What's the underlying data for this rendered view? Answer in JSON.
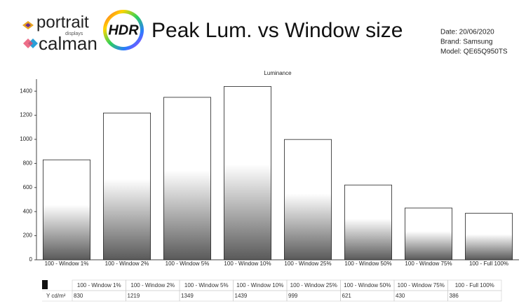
{
  "header": {
    "logo_top": "portrait",
    "logo_top_sub": "displays",
    "logo_bottom": "calman",
    "badge": "HDR",
    "title": "Peak Lum. vs Window size",
    "date": "Date: 20/06/2020",
    "brand": "Brand: Samsung",
    "model": "Model: QE65Q950TS"
  },
  "chart_data": {
    "type": "bar",
    "title": "Luminance",
    "categories": [
      "100 - Window 1%",
      "100 - Window 2%",
      "100 - Window 5%",
      "100 - Window 10%",
      "100 - Window 25%",
      "100 - Window 50%",
      "100 - Window 75%",
      "100 - Full 100%"
    ],
    "values": [
      830,
      1219,
      1349,
      1439,
      999,
      621,
      430,
      386
    ],
    "ylim": [
      0,
      1500
    ],
    "yticks": [
      0,
      200,
      400,
      600,
      800,
      1000,
      1200,
      1400
    ],
    "grid": false
  },
  "table": {
    "row_label": "Y cd/m²"
  }
}
